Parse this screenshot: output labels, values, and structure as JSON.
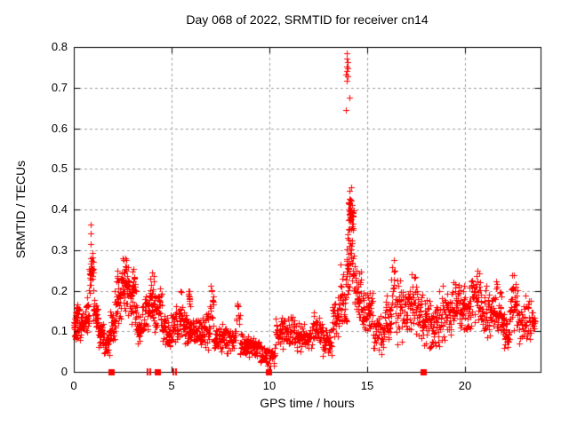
{
  "figure": {
    "background": "#ffffff"
  },
  "chart_data": {
    "type": "scatter",
    "title": "Day 068 of 2022, SRMTID for receiver cn14",
    "xlabel": "GPS time / hours",
    "ylabel": "SRMTID / TECUs",
    "xlim": [
      0,
      23.87
    ],
    "ylim": [
      0,
      0.8
    ],
    "x_ticks": [
      0,
      5,
      10,
      15,
      20
    ],
    "x_tick_labels": [
      "0",
      "5",
      "10",
      "15",
      "20"
    ],
    "y_ticks": [
      0,
      0.1,
      0.2,
      0.3,
      0.4,
      0.5,
      0.6,
      0.7,
      0.8
    ],
    "y_tick_labels": [
      "0",
      "0.1",
      "0.2",
      "0.3",
      "0.4",
      "0.5",
      "0.6",
      "0.7",
      "0.8"
    ],
    "grid": {
      "enabled": true,
      "style": "dashed",
      "axes": "both"
    },
    "legend": "none",
    "marker": {
      "shape": "plus",
      "size": 7,
      "color": "#ff0000"
    },
    "colors": {
      "marker": "#ff0000",
      "grid": "#9c9c9c",
      "axis": "#000000",
      "background": "#ffffff"
    },
    "series_name": "SRMTID",
    "scatter_bands_format": [
      "x_start_hours",
      "x_end_hours",
      "n_points",
      "y_min_TECUs",
      "y_max_TECUs"
    ],
    "scatter_bands": [
      [
        0.0,
        0.3,
        46,
        0.07,
        0.17
      ],
      [
        0.3,
        0.6,
        28,
        0.08,
        0.15
      ],
      [
        0.6,
        0.78,
        18,
        0.09,
        0.19
      ],
      [
        0.78,
        1.0,
        36,
        0.19,
        0.3
      ],
      [
        1.0,
        1.25,
        30,
        0.09,
        0.19
      ],
      [
        1.25,
        1.55,
        28,
        0.05,
        0.12
      ],
      [
        1.55,
        1.85,
        28,
        0.035,
        0.11
      ],
      [
        1.85,
        2.1,
        28,
        0.07,
        0.15
      ],
      [
        2.1,
        2.45,
        42,
        0.1,
        0.26
      ],
      [
        2.45,
        2.8,
        48,
        0.13,
        0.3
      ],
      [
        2.8,
        3.2,
        48,
        0.11,
        0.27
      ],
      [
        3.2,
        3.6,
        36,
        0.06,
        0.17
      ],
      [
        3.6,
        3.85,
        22,
        0.09,
        0.22
      ],
      [
        3.85,
        4.1,
        28,
        0.11,
        0.27
      ],
      [
        4.1,
        4.5,
        38,
        0.08,
        0.23
      ],
      [
        4.5,
        5.0,
        42,
        0.05,
        0.16
      ],
      [
        5.0,
        5.35,
        32,
        0.06,
        0.17
      ],
      [
        5.35,
        5.55,
        18,
        0.08,
        0.21
      ],
      [
        5.55,
        5.95,
        36,
        0.06,
        0.16
      ],
      [
        5.85,
        5.95,
        10,
        0.15,
        0.235
      ],
      [
        5.95,
        6.5,
        46,
        0.05,
        0.14
      ],
      [
        6.5,
        6.95,
        40,
        0.05,
        0.15
      ],
      [
        6.95,
        7.15,
        14,
        0.13,
        0.225
      ],
      [
        7.15,
        7.7,
        46,
        0.05,
        0.13
      ],
      [
        7.7,
        8.3,
        46,
        0.04,
        0.12
      ],
      [
        8.3,
        8.5,
        10,
        0.1,
        0.185
      ],
      [
        8.5,
        9.0,
        42,
        0.035,
        0.1
      ],
      [
        9.0,
        9.5,
        38,
        0.03,
        0.09
      ],
      [
        9.5,
        10.3,
        52,
        0.015,
        0.07
      ],
      [
        10.3,
        10.8,
        38,
        0.05,
        0.14
      ],
      [
        10.8,
        11.3,
        38,
        0.06,
        0.14
      ],
      [
        11.3,
        12.2,
        64,
        0.045,
        0.13
      ],
      [
        12.2,
        12.7,
        38,
        0.05,
        0.155
      ],
      [
        12.7,
        13.2,
        38,
        0.03,
        0.12
      ],
      [
        13.2,
        13.6,
        32,
        0.07,
        0.19
      ],
      [
        13.6,
        13.95,
        32,
        0.1,
        0.27
      ],
      [
        13.95,
        14.1,
        28,
        0.18,
        0.35
      ],
      [
        14.05,
        14.3,
        55,
        0.25,
        0.5
      ],
      [
        14.25,
        14.45,
        16,
        0.15,
        0.3
      ],
      [
        14.45,
        14.7,
        26,
        0.12,
        0.26
      ],
      [
        14.7,
        15.3,
        50,
        0.09,
        0.22
      ],
      [
        15.3,
        15.9,
        42,
        0.035,
        0.15
      ],
      [
        15.9,
        16.25,
        32,
        0.07,
        0.2
      ],
      [
        16.25,
        16.45,
        14,
        0.15,
        0.29
      ],
      [
        16.45,
        17.1,
        50,
        0.06,
        0.24
      ],
      [
        17.1,
        17.6,
        42,
        0.08,
        0.27
      ],
      [
        17.6,
        18.2,
        46,
        0.055,
        0.2
      ],
      [
        18.2,
        18.7,
        42,
        0.04,
        0.18
      ],
      [
        18.7,
        19.3,
        46,
        0.06,
        0.22
      ],
      [
        19.3,
        19.8,
        42,
        0.09,
        0.24
      ],
      [
        19.8,
        20.3,
        42,
        0.075,
        0.22
      ],
      [
        20.3,
        20.8,
        42,
        0.09,
        0.26
      ],
      [
        20.8,
        21.4,
        46,
        0.08,
        0.22
      ],
      [
        21.4,
        21.9,
        42,
        0.09,
        0.24
      ],
      [
        21.9,
        22.3,
        32,
        0.04,
        0.16
      ],
      [
        22.3,
        22.7,
        36,
        0.09,
        0.25
      ],
      [
        22.7,
        23.2,
        36,
        0.055,
        0.2
      ],
      [
        23.2,
        23.6,
        28,
        0.05,
        0.2
      ]
    ],
    "outlier_points": [
      [
        13.96,
        0.785
      ],
      [
        13.975,
        0.772
      ],
      [
        13.99,
        0.762
      ],
      [
        13.955,
        0.753
      ],
      [
        13.98,
        0.74
      ],
      [
        14.0,
        0.728
      ],
      [
        13.93,
        0.733
      ],
      [
        14.015,
        0.748
      ],
      [
        13.97,
        0.716
      ],
      [
        14.1,
        0.675
      ],
      [
        13.9,
        0.645
      ],
      [
        0.86,
        0.363
      ],
      [
        0.87,
        0.342
      ],
      [
        0.86,
        0.315
      ]
    ],
    "baseline_markers": {
      "description": "red markers sitting on the y=0 axis line",
      "color": "#ff0000",
      "squares_x": [
        1.9,
        4.27,
        9.95,
        17.85
      ],
      "thin_bars_x": [
        3.78,
        3.92,
        5.08,
        5.22
      ]
    }
  }
}
